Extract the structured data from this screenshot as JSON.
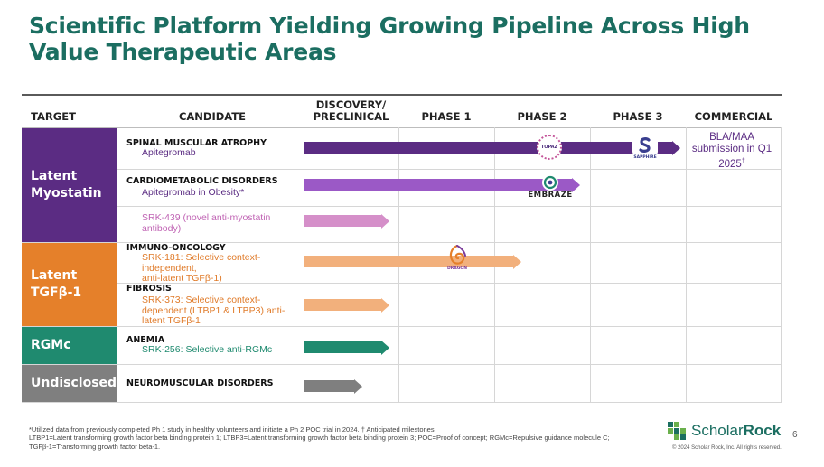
{
  "title": "Scientific Platform Yielding Growing Pipeline Across High Value Therapeutic Areas",
  "headers": {
    "target": "TARGET",
    "candidate": "CANDIDATE",
    "discovery_line1": "DISCOVERY/",
    "discovery_line2": "PRECLINICAL",
    "phase1": "PHASE 1",
    "phase2": "PHASE 2",
    "phase3": "PHASE 3",
    "commercial": "COMMERCIAL"
  },
  "targets": [
    {
      "line1": "Latent",
      "line2": "Myostatin",
      "color": "#5b2c83"
    },
    {
      "line1": "Latent",
      "line2": "TGFβ-1",
      "color": "#e5802a"
    },
    {
      "line1": "RGMc",
      "line2": "",
      "color": "#1f8a6f"
    },
    {
      "line1": "Undisclosed",
      "line2": "",
      "color": "#7f7f7f"
    }
  ],
  "areas": {
    "sma": "SPINAL MUSCULAR ATROPHY",
    "cardio": "CARDIOMETABOLIC DISORDERS",
    "immuno": "IMMUNO-ONCOLOGY",
    "fibrosis": "FIBROSIS",
    "anemia": "ANEMIA",
    "neuro": "NEUROMUSCULAR DISORDERS"
  },
  "candidates": {
    "apitegromab": "Apitegromab",
    "obesity": "Apitegromab in Obesity*",
    "srk439_l1": "SRK-439 (novel anti-myostatin",
    "srk439_l2": "antibody)",
    "srk181_l1": "SRK-181:  Selective context-",
    "srk181_l2": "independent,",
    "srk181_l3": "anti-latent TGFβ-1)",
    "srk373_l1": "SRK-373: Selective context-",
    "srk373_l2": "dependent (LTBP1 & LTBP3) anti-",
    "srk373_l3": "latent TGFβ-1",
    "srk256": "SRK-256: Selective anti-RGMc"
  },
  "commercial_note": {
    "line1": "BLA/MAA",
    "line2": "submission in Q1",
    "line3": "2025",
    "mark": "†"
  },
  "trial_logos": {
    "topaz": "TOPAZ",
    "sapphire": "SAPPHIRE",
    "embraze": "EMBRAZE",
    "dragon": "DRAGON"
  },
  "colors": {
    "purple": "#5b2c83",
    "lavender": "#9b59c6",
    "pink": "#d58fc9",
    "peach": "#f2b07c",
    "teal": "#1f8a6f",
    "gray": "#7f7f7f",
    "title": "#1b6e61"
  },
  "footnote": {
    "line1": "*Utilized data from previously completed Ph 1 study in healthy volunteers and initiate a Ph 2 POC trial in 2024. † Anticipated milestones.",
    "line2": "LTBP1=Latent transforming growth factor beta binding protein 1; LTBP3=Latent transforming growth factor beta binding protein 3; POC=Proof of concept; RGMc=Repulsive guidance molecule C;",
    "line3": "TGFβ-1=Transforming growth factor beta-1."
  },
  "brand": {
    "name_light": "Scholar",
    "name_bold": "Rock",
    "copyright": "© 2024 Scholar Rock, Inc. All rights reserved."
  },
  "page_number": "6"
}
